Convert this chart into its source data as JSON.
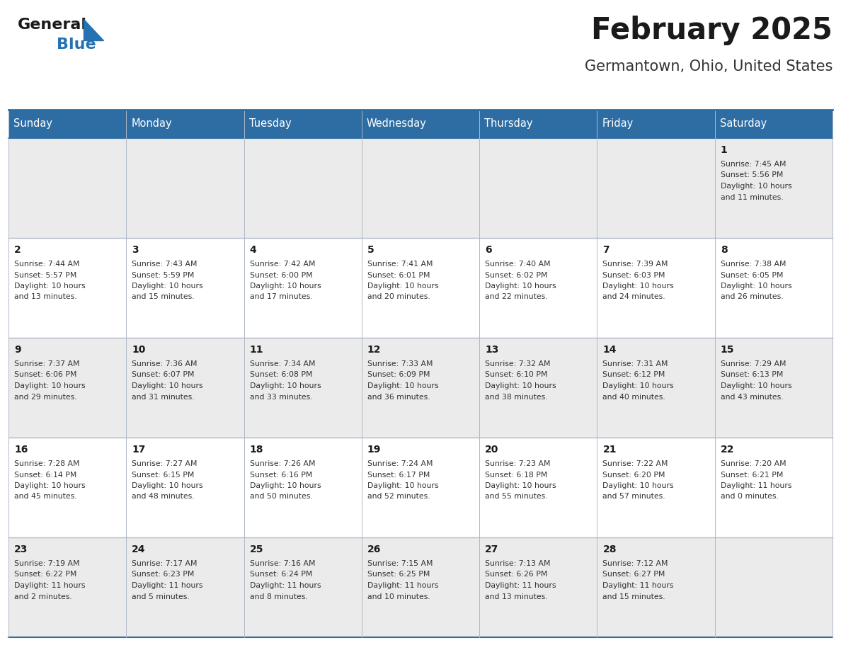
{
  "title": "February 2025",
  "subtitle": "Germantown, Ohio, United States",
  "header_color": "#2E6DA4",
  "header_text_color": "#FFFFFF",
  "bg_color": "#FFFFFF",
  "cell_bg_row0": "#EBEBEB",
  "cell_bg_row1": "#FFFFFF",
  "cell_bg_row2": "#EBEBEB",
  "cell_bg_row3": "#FFFFFF",
  "cell_bg_row4": "#EBEBEB",
  "day_headers": [
    "Sunday",
    "Monday",
    "Tuesday",
    "Wednesday",
    "Thursday",
    "Friday",
    "Saturday"
  ],
  "title_color": "#1a1a1a",
  "subtitle_color": "#333333",
  "text_color": "#333333",
  "day_num_color": "#1a1a1a",
  "logo_general_color": "#1a1a1a",
  "logo_blue_color": "#2472B3",
  "days": [
    {
      "day": 1,
      "col": 6,
      "row": 0,
      "sunrise": "7:45 AM",
      "sunset": "5:56 PM",
      "daylight_h": "10 hours",
      "daylight_m": "and 11 minutes."
    },
    {
      "day": 2,
      "col": 0,
      "row": 1,
      "sunrise": "7:44 AM",
      "sunset": "5:57 PM",
      "daylight_h": "10 hours",
      "daylight_m": "and 13 minutes."
    },
    {
      "day": 3,
      "col": 1,
      "row": 1,
      "sunrise": "7:43 AM",
      "sunset": "5:59 PM",
      "daylight_h": "10 hours",
      "daylight_m": "and 15 minutes."
    },
    {
      "day": 4,
      "col": 2,
      "row": 1,
      "sunrise": "7:42 AM",
      "sunset": "6:00 PM",
      "daylight_h": "10 hours",
      "daylight_m": "and 17 minutes."
    },
    {
      "day": 5,
      "col": 3,
      "row": 1,
      "sunrise": "7:41 AM",
      "sunset": "6:01 PM",
      "daylight_h": "10 hours",
      "daylight_m": "and 20 minutes."
    },
    {
      "day": 6,
      "col": 4,
      "row": 1,
      "sunrise": "7:40 AM",
      "sunset": "6:02 PM",
      "daylight_h": "10 hours",
      "daylight_m": "and 22 minutes."
    },
    {
      "day": 7,
      "col": 5,
      "row": 1,
      "sunrise": "7:39 AM",
      "sunset": "6:03 PM",
      "daylight_h": "10 hours",
      "daylight_m": "and 24 minutes."
    },
    {
      "day": 8,
      "col": 6,
      "row": 1,
      "sunrise": "7:38 AM",
      "sunset": "6:05 PM",
      "daylight_h": "10 hours",
      "daylight_m": "and 26 minutes."
    },
    {
      "day": 9,
      "col": 0,
      "row": 2,
      "sunrise": "7:37 AM",
      "sunset": "6:06 PM",
      "daylight_h": "10 hours",
      "daylight_m": "and 29 minutes."
    },
    {
      "day": 10,
      "col": 1,
      "row": 2,
      "sunrise": "7:36 AM",
      "sunset": "6:07 PM",
      "daylight_h": "10 hours",
      "daylight_m": "and 31 minutes."
    },
    {
      "day": 11,
      "col": 2,
      "row": 2,
      "sunrise": "7:34 AM",
      "sunset": "6:08 PM",
      "daylight_h": "10 hours",
      "daylight_m": "and 33 minutes."
    },
    {
      "day": 12,
      "col": 3,
      "row": 2,
      "sunrise": "7:33 AM",
      "sunset": "6:09 PM",
      "daylight_h": "10 hours",
      "daylight_m": "and 36 minutes."
    },
    {
      "day": 13,
      "col": 4,
      "row": 2,
      "sunrise": "7:32 AM",
      "sunset": "6:10 PM",
      "daylight_h": "10 hours",
      "daylight_m": "and 38 minutes."
    },
    {
      "day": 14,
      "col": 5,
      "row": 2,
      "sunrise": "7:31 AM",
      "sunset": "6:12 PM",
      "daylight_h": "10 hours",
      "daylight_m": "and 40 minutes."
    },
    {
      "day": 15,
      "col": 6,
      "row": 2,
      "sunrise": "7:29 AM",
      "sunset": "6:13 PM",
      "daylight_h": "10 hours",
      "daylight_m": "and 43 minutes."
    },
    {
      "day": 16,
      "col": 0,
      "row": 3,
      "sunrise": "7:28 AM",
      "sunset": "6:14 PM",
      "daylight_h": "10 hours",
      "daylight_m": "and 45 minutes."
    },
    {
      "day": 17,
      "col": 1,
      "row": 3,
      "sunrise": "7:27 AM",
      "sunset": "6:15 PM",
      "daylight_h": "10 hours",
      "daylight_m": "and 48 minutes."
    },
    {
      "day": 18,
      "col": 2,
      "row": 3,
      "sunrise": "7:26 AM",
      "sunset": "6:16 PM",
      "daylight_h": "10 hours",
      "daylight_m": "and 50 minutes."
    },
    {
      "day": 19,
      "col": 3,
      "row": 3,
      "sunrise": "7:24 AM",
      "sunset": "6:17 PM",
      "daylight_h": "10 hours",
      "daylight_m": "and 52 minutes."
    },
    {
      "day": 20,
      "col": 4,
      "row": 3,
      "sunrise": "7:23 AM",
      "sunset": "6:18 PM",
      "daylight_h": "10 hours",
      "daylight_m": "and 55 minutes."
    },
    {
      "day": 21,
      "col": 5,
      "row": 3,
      "sunrise": "7:22 AM",
      "sunset": "6:20 PM",
      "daylight_h": "10 hours",
      "daylight_m": "and 57 minutes."
    },
    {
      "day": 22,
      "col": 6,
      "row": 3,
      "sunrise": "7:20 AM",
      "sunset": "6:21 PM",
      "daylight_h": "11 hours",
      "daylight_m": "and 0 minutes."
    },
    {
      "day": 23,
      "col": 0,
      "row": 4,
      "sunrise": "7:19 AM",
      "sunset": "6:22 PM",
      "daylight_h": "11 hours",
      "daylight_m": "and 2 minutes."
    },
    {
      "day": 24,
      "col": 1,
      "row": 4,
      "sunrise": "7:17 AM",
      "sunset": "6:23 PM",
      "daylight_h": "11 hours",
      "daylight_m": "and 5 minutes."
    },
    {
      "day": 25,
      "col": 2,
      "row": 4,
      "sunrise": "7:16 AM",
      "sunset": "6:24 PM",
      "daylight_h": "11 hours",
      "daylight_m": "and 8 minutes."
    },
    {
      "day": 26,
      "col": 3,
      "row": 4,
      "sunrise": "7:15 AM",
      "sunset": "6:25 PM",
      "daylight_h": "11 hours",
      "daylight_m": "and 10 minutes."
    },
    {
      "day": 27,
      "col": 4,
      "row": 4,
      "sunrise": "7:13 AM",
      "sunset": "6:26 PM",
      "daylight_h": "11 hours",
      "daylight_m": "and 13 minutes."
    },
    {
      "day": 28,
      "col": 5,
      "row": 4,
      "sunrise": "7:12 AM",
      "sunset": "6:27 PM",
      "daylight_h": "11 hours",
      "daylight_m": "and 15 minutes."
    }
  ]
}
